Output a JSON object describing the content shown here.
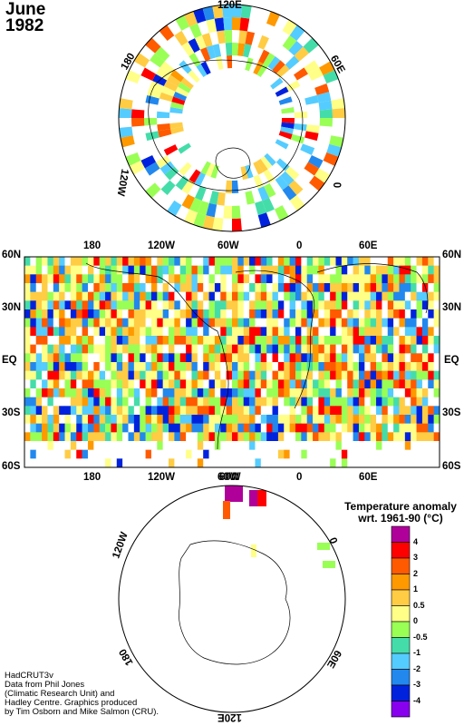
{
  "header": {
    "month": "June",
    "year": "1982"
  },
  "credits": [
    "HadCRUT3v",
    "Data from Phil Jones",
    "(Climatic Research Unit) and",
    "Hadley Centre.  Graphics produced",
    "by Tim Osborn and Mike Salmon (CRU)."
  ],
  "north_polar": {
    "labels": [
      "120E",
      "60E",
      "0",
      "120W",
      "180"
    ]
  },
  "world_map": {
    "lat_labels": [
      "60N",
      "30N",
      "EQ",
      "30S",
      "60S"
    ],
    "lon_labels": [
      "180",
      "120W",
      "60W",
      "0",
      "60E"
    ]
  },
  "south_polar": {
    "labels": [
      "60W",
      "0",
      "60E",
      "120E",
      "180",
      "120W"
    ]
  },
  "legend": {
    "title_line1": "Temperature anomaly",
    "title_line2": "wrt. 1961-90  (°C)",
    "labels": [
      "4",
      "3",
      "2",
      "1",
      "0.5",
      "0",
      "-0.5",
      "-1",
      "-2",
      "-3",
      "-4"
    ],
    "colors": [
      "#b0009a",
      "#ff0000",
      "#ff5a00",
      "#ff9900",
      "#ffcc44",
      "#ffff88",
      "#99ff55",
      "#44ddaa",
      "#55ccff",
      "#2288ee",
      "#0022dd",
      "#8800ee"
    ]
  }
}
